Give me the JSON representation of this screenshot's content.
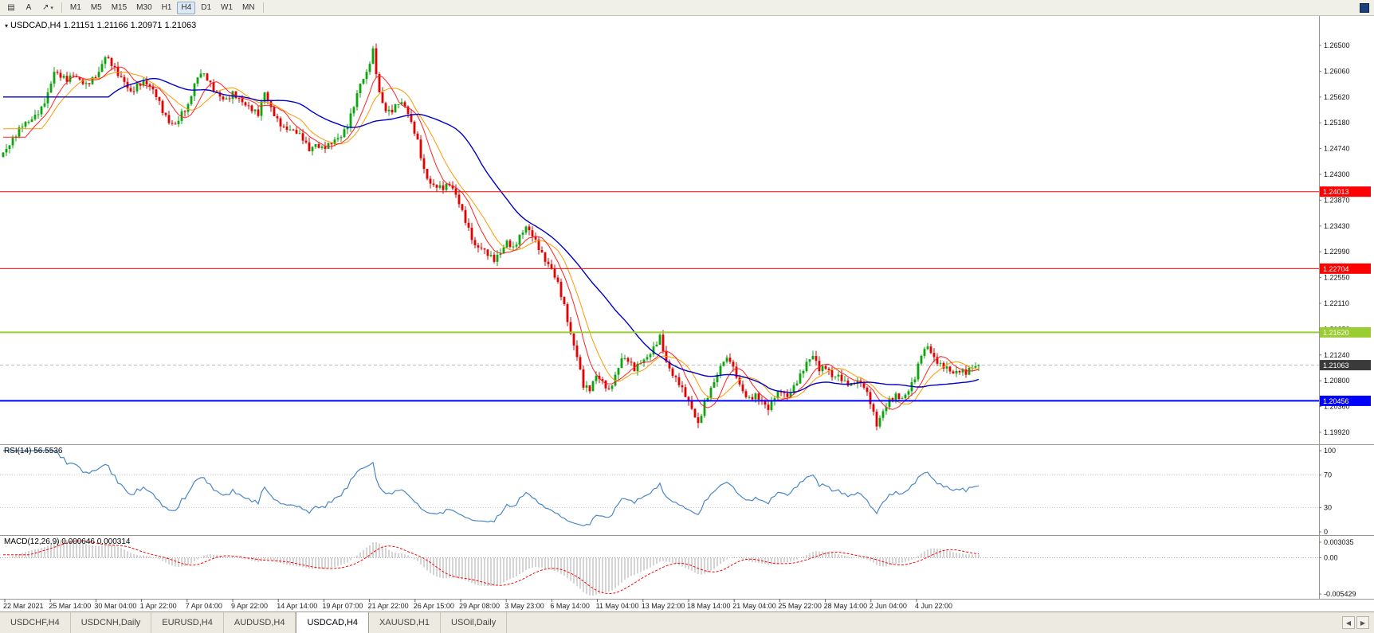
{
  "toolbar": {
    "tools": [
      {
        "name": "chart-tools-icon",
        "glyph": "▤"
      },
      {
        "name": "text-label-icon",
        "glyph": "A"
      },
      {
        "name": "arrow-tools-icon",
        "glyph": "↗",
        "caret": "▾"
      }
    ],
    "timeframes": [
      "M1",
      "M5",
      "M15",
      "M30",
      "H1",
      "H4",
      "D1",
      "W1",
      "MN"
    ],
    "active_timeframe": "H4"
  },
  "chart": {
    "title_icon": "▾",
    "title_line": "USDCAD,H4 1.21151 1.21166 1.20971 1.21063"
  },
  "chart_data": {
    "type": "candlestick",
    "symbol": "USDCAD",
    "timeframe": "H4",
    "ohlc": {
      "open": "1.21151",
      "high": "1.21166",
      "low": "1.20971",
      "close": "1.21063"
    },
    "price_axis": [
      "1.26500",
      "1.26060",
      "1.25620",
      "1.25180",
      "1.24740",
      "1.24300",
      "1.23870",
      "1.23430",
      "1.22990",
      "1.22550",
      "1.22110",
      "1.21680",
      "1.21240",
      "1.20800",
      "1.20360",
      "1.19920"
    ],
    "closes": [
      1.2468,
      1.248,
      1.2495,
      1.2512,
      1.252,
      1.2532,
      1.2546,
      1.257,
      1.2605,
      1.2595,
      1.2588,
      1.2598,
      1.2592,
      1.2586,
      1.2596,
      1.2605,
      1.263,
      1.2615,
      1.2598,
      1.2588,
      1.2572,
      1.2585,
      1.259,
      1.258,
      1.2562,
      1.2535,
      1.2518,
      1.2516,
      1.2538,
      1.255,
      1.2585,
      1.2602,
      1.259,
      1.2572,
      1.2563,
      1.256,
      1.2572,
      1.256,
      1.2548,
      1.2538,
      1.253,
      1.257,
      1.2545,
      1.2526,
      1.2512,
      1.2507,
      1.25,
      1.2488,
      1.247,
      1.2482,
      1.2478,
      1.2484,
      1.249,
      1.2494,
      1.251,
      1.2545,
      1.2585,
      1.2605,
      1.2645,
      1.257,
      1.2538,
      1.2536,
      1.255,
      1.2546,
      1.252,
      1.249,
      1.244,
      1.2415,
      1.2408,
      1.2404,
      1.2412,
      1.2396,
      1.237,
      1.234,
      1.231,
      1.2305,
      1.2292,
      1.2282,
      1.2296,
      1.2318,
      1.2308,
      1.2328,
      1.2342,
      1.2325,
      1.2302,
      1.2282,
      1.227,
      1.2248,
      1.221,
      1.216,
      1.212,
      1.2068,
      1.2062,
      1.2088,
      1.208,
      1.2066,
      1.209,
      1.2118,
      1.2112,
      1.2096,
      1.211,
      1.212,
      1.2138,
      1.2158,
      1.2112,
      1.2088,
      1.2072,
      1.2052,
      1.2032,
      1.2008,
      1.2045,
      1.2068,
      1.209,
      1.2112,
      1.2112,
      1.2085,
      1.2062,
      1.2052,
      1.2058,
      1.2045,
      1.203,
      1.205,
      1.206,
      1.2052,
      1.2072,
      1.2092,
      1.2112,
      1.2122,
      1.2096,
      1.21,
      1.2086,
      1.209,
      1.208,
      1.2076,
      1.208,
      1.2068,
      1.204,
      1.2002,
      1.2028,
      1.205,
      1.2058,
      1.205,
      1.2062,
      1.2082,
      1.2122,
      1.2138,
      1.212,
      1.211,
      1.2104,
      1.2092,
      1.2094,
      1.209,
      1.2102,
      1.2106
    ],
    "hlines": [
      {
        "label": "1.24013",
        "value": 1.24013,
        "color": "#ff0000",
        "width": 1
      },
      {
        "label": "1.22704",
        "value": 1.22704,
        "color": "#ff0000",
        "width": 1
      },
      {
        "label": "1.21620",
        "value": 1.2162,
        "color": "#9acd32",
        "width": 2
      },
      {
        "label": "1.20456",
        "value": 1.20456,
        "color": "#0000ff",
        "width": 2
      }
    ],
    "bid": {
      "label": "1.21063",
      "value": 1.21063,
      "color": "#3a3a3a"
    },
    "time_axis": [
      "22 Mar 2021",
      "25 Mar 14:00",
      "30 Mar 04:00",
      "1 Apr 22:00",
      "7 Apr 04:00",
      "9 Apr 22:00",
      "14 Apr 14:00",
      "19 Apr 07:00",
      "21 Apr 22:00",
      "26 Apr 15:00",
      "29 Apr 08:00",
      "3 May 23:00",
      "6 May 14:00",
      "11 May 04:00",
      "13 May 22:00",
      "18 May 14:00",
      "21 May 04:00",
      "25 May 22:00",
      "28 May 14:00",
      "2 Jun 04:00",
      "4 Jun 22:00"
    ],
    "indicators": {
      "rsi": {
        "label": "RSI(14) 56.5536",
        "period": 14,
        "levels": [
          "100",
          "70",
          "30",
          "0"
        ]
      },
      "macd": {
        "label": "MACD(12,26,9) 0.000646 0.000314",
        "axis_max": "0.003035",
        "axis_zero": "0.00",
        "axis_min": "-0.005429"
      }
    },
    "colors": {
      "up": "#0da50d",
      "down": "#e60000",
      "ma_fast": "#ff2020",
      "ma_mid": "#ff9900",
      "ma_slow": "#0000c8",
      "rsi": "#4a86c8",
      "macd_bar": "#a8a8a8",
      "macd_signal": "#ff0000"
    }
  },
  "tabs": {
    "items": [
      {
        "label": "USDCHF,H4"
      },
      {
        "label": "USDCNH,Daily"
      },
      {
        "label": "EURUSD,H4"
      },
      {
        "label": "AUDUSD,H4"
      },
      {
        "label": "USDCAD,H4"
      },
      {
        "label": "XAUUSD,H1"
      },
      {
        "label": "USOil,Daily"
      }
    ],
    "active": "USDCAD,H4",
    "scroll_icons": {
      "left": "◀",
      "right": "▶"
    }
  }
}
